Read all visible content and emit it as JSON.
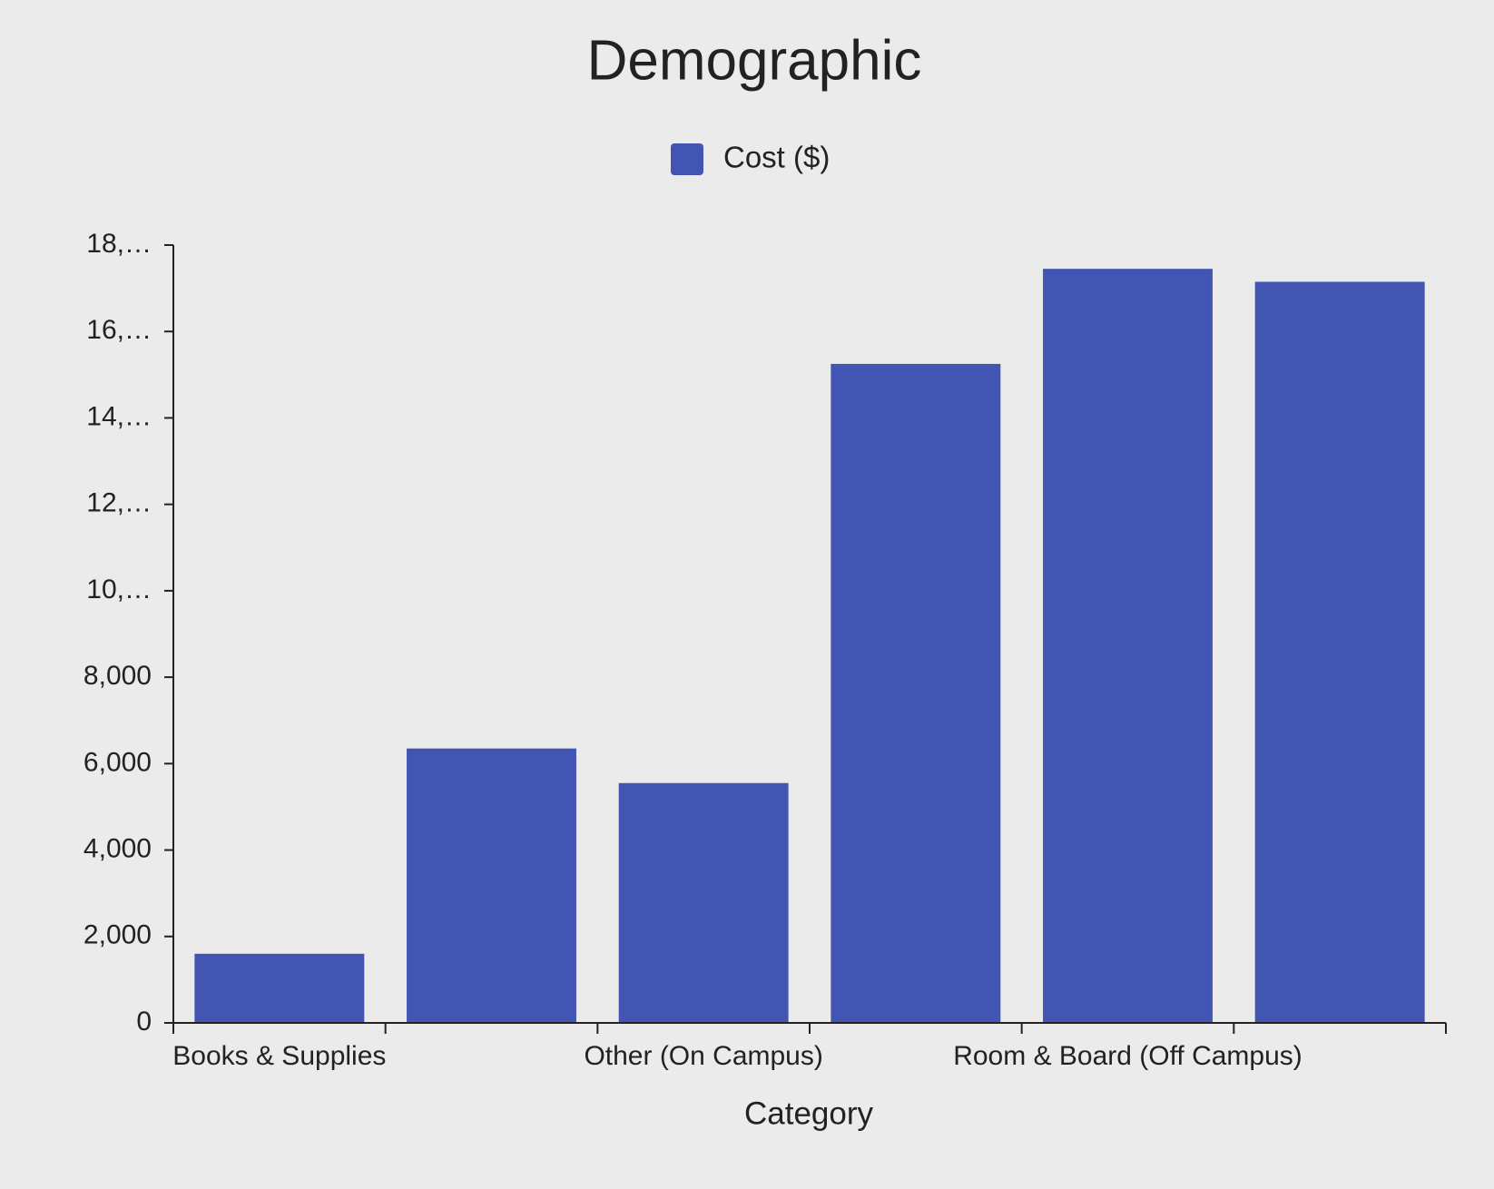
{
  "chart_data": {
    "type": "bar",
    "title": "Demographic",
    "x_label": "Category",
    "categories": [
      "Books & Supplies",
      null,
      "Other (On Campus)",
      null,
      "Room & Board (Off Campus)",
      null
    ],
    "series": [
      {
        "name": "Cost ($)",
        "color": "#4255b2",
        "values": [
          1600,
          6350,
          5550,
          15250,
          17450,
          17150
        ]
      }
    ],
    "ylim": [
      0,
      18000
    ],
    "yticks": [
      0,
      {
        "value": 2000,
        "label": "2,000"
      },
      {
        "value": 4000,
        "label": "4,000"
      },
      {
        "value": 6000,
        "label": "6,000"
      },
      {
        "value": 8000,
        "label": "8,000"
      },
      {
        "value": 10000,
        "label": "10,…"
      },
      {
        "value": 12000,
        "label": "12,…"
      },
      {
        "value": 14000,
        "label": "14,…"
      },
      {
        "value": 16000,
        "label": "16,…"
      },
      {
        "value": 18000,
        "label": "18,…"
      }
    ],
    "legend": "top",
    "grid": false
  }
}
